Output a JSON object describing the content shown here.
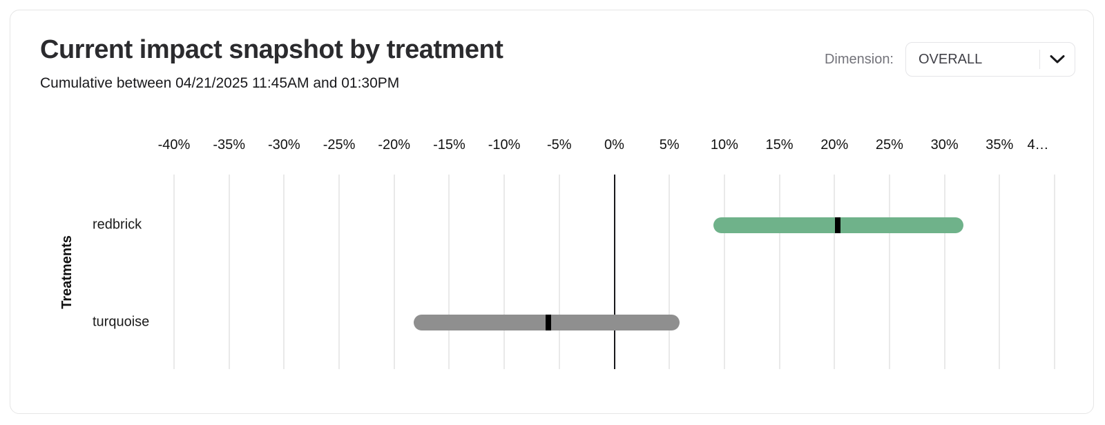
{
  "header": {
    "title": "Current impact snapshot by treatment",
    "subtitle": "Cumulative between 04/21/2025 11:45AM and 01:30PM"
  },
  "dimension_control": {
    "label": "Dimension:",
    "selected": "OVERALL"
  },
  "chart_data": {
    "type": "bar",
    "subtype": "horizontal-interval-with-point-estimate",
    "title": "Current impact snapshot by treatment",
    "xlabel": "",
    "ylabel": "Treatments",
    "xlim": [
      -40,
      40
    ],
    "tick_step": 5,
    "tick_labels": [
      "-40%",
      "-35%",
      "-30%",
      "-25%",
      "-20%",
      "-15%",
      "-10%",
      "-5%",
      "0%",
      "5%",
      "10%",
      "15%",
      "20%",
      "25%",
      "30%",
      "35%",
      "4…"
    ],
    "grid": true,
    "zero_line": true,
    "legend": "none",
    "categories": [
      "redbrick",
      "turquoise"
    ],
    "series": [
      {
        "name": "redbrick",
        "ci_low": 9.0,
        "ci_high": 31.7,
        "point": 20.3,
        "color": "#6fb28a"
      },
      {
        "name": "turquoise",
        "ci_low": -18.2,
        "ci_high": 5.9,
        "point": -6.0,
        "color": "#8f8f8f"
      }
    ],
    "marker_color": "#000000",
    "units": "percent"
  },
  "colors": {
    "card_border": "#e5e5e5",
    "gridline": "#e9e9e9",
    "zero_line": "#18181b",
    "positive_bar": "#6fb28a",
    "neutral_bar": "#8f8f8f",
    "marker": "#000000"
  }
}
